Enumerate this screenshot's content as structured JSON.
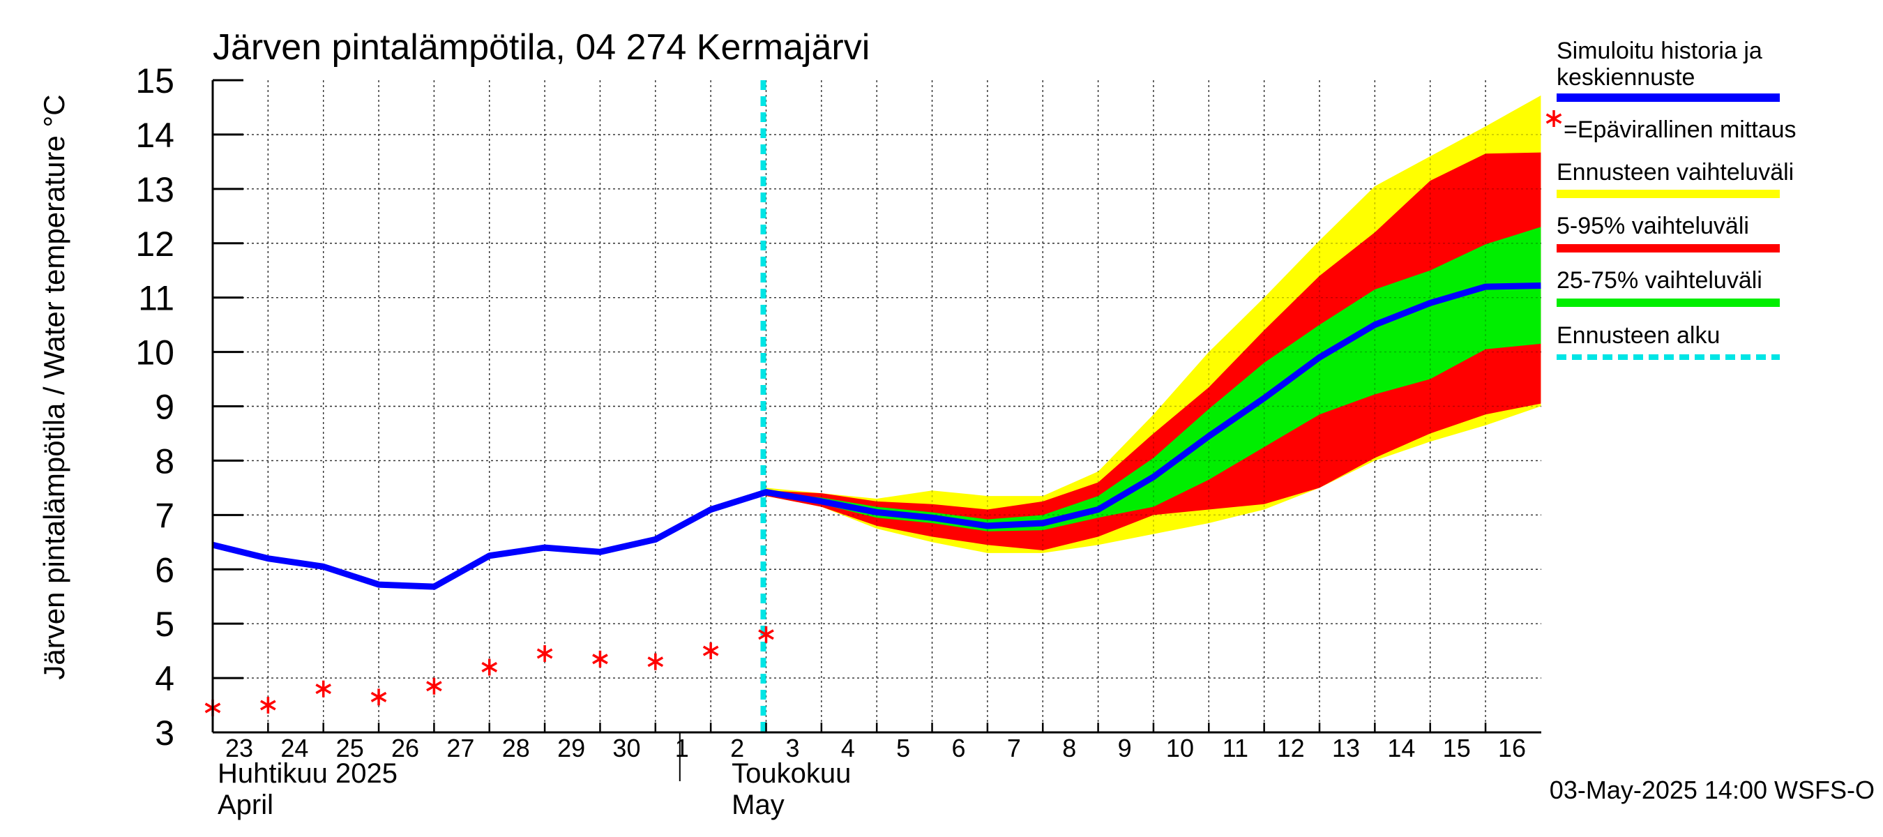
{
  "chart_data": {
    "type": "area",
    "title": "Järven pintalämpötila, 04 274 Kermajärvi",
    "ylabel": "Järven pintalämpötila / Water temperature °C",
    "ylim": [
      3,
      15
    ],
    "yticks": [
      "3",
      "4",
      "5",
      "6",
      "7",
      "8",
      "9",
      "10",
      "11",
      "12",
      "13",
      "14",
      "15"
    ],
    "x_range_days": [
      -0.1,
      24.0
    ],
    "day_labels": [
      "23",
      "24",
      "25",
      "26",
      "27",
      "28",
      "29",
      "30",
      "1",
      "2",
      "3",
      "4",
      "5",
      "6",
      "7",
      "8",
      "9",
      "10",
      "11",
      "12",
      "13",
      "14",
      "15",
      "16"
    ],
    "month_labels": [
      {
        "line1": "Huhtikuu  2025",
        "line2": "April",
        "day_index": 0
      },
      {
        "line1": "Toukokuu",
        "line2": "May",
        "day_index": 9
      }
    ],
    "month_boundary_day_index": 8,
    "forecast_start_day_index": 10,
    "grid": true,
    "legend_position": "right",
    "series": [
      {
        "name": "Simuloitu historia ja keskiennuste",
        "kind": "line",
        "color": "#0000ff",
        "x": [
          0,
          1,
          2,
          3,
          4,
          5,
          6,
          7,
          8,
          9,
          10,
          11,
          12,
          13,
          14,
          15,
          16,
          17,
          18,
          19,
          20,
          21,
          22,
          23,
          24
        ],
        "y": [
          6.45,
          6.2,
          6.05,
          5.72,
          5.68,
          6.25,
          6.4,
          6.32,
          6.55,
          7.1,
          7.42,
          7.25,
          7.05,
          6.95,
          6.8,
          6.85,
          7.1,
          7.7,
          8.45,
          9.15,
          9.9,
          10.5,
          10.9,
          11.2,
          11.22
        ]
      },
      {
        "name": "=Epävirallinen mittaus",
        "kind": "markers",
        "color": "#ff0000",
        "x": [
          0,
          1,
          2,
          3,
          4,
          5,
          6,
          7,
          8,
          9,
          10
        ],
        "y": [
          3.45,
          3.5,
          3.8,
          3.65,
          3.85,
          4.2,
          4.45,
          4.35,
          4.3,
          4.5,
          4.8
        ]
      }
    ],
    "bands": [
      {
        "name": "Ennusteen vaihteluväli",
        "color": "#ffff00",
        "x": [
          10,
          11,
          12,
          13,
          14,
          15,
          16,
          17,
          18,
          19,
          20,
          21,
          22,
          23,
          24
        ],
        "upper": [
          7.5,
          7.4,
          7.3,
          7.45,
          7.35,
          7.35,
          7.8,
          8.85,
          10.0,
          11.0,
          12.05,
          13.05,
          13.6,
          14.15,
          14.72
        ],
        "lower": [
          7.35,
          7.15,
          6.75,
          6.5,
          6.3,
          6.3,
          6.45,
          6.65,
          6.85,
          7.1,
          7.5,
          8.0,
          8.35,
          8.65,
          9.0
        ]
      },
      {
        "name": "5-95% vaihteluväli",
        "color": "#ff0000",
        "x": [
          10,
          11,
          12,
          13,
          14,
          15,
          16,
          17,
          18,
          19,
          20,
          21,
          22,
          23,
          24
        ],
        "upper": [
          7.45,
          7.4,
          7.25,
          7.2,
          7.1,
          7.25,
          7.6,
          8.5,
          9.35,
          10.4,
          11.4,
          12.2,
          13.15,
          13.65,
          13.67
        ],
        "lower": [
          7.35,
          7.15,
          6.8,
          6.6,
          6.45,
          6.35,
          6.6,
          7.0,
          7.1,
          7.2,
          7.5,
          8.05,
          8.5,
          8.85,
          9.05
        ]
      },
      {
        "name": "25-75% vaihteluväli",
        "color": "#00ee00",
        "x": [
          10,
          11,
          12,
          13,
          14,
          15,
          16,
          17,
          18,
          19,
          20,
          21,
          22,
          23,
          24
        ],
        "upper": [
          7.42,
          7.32,
          7.15,
          7.05,
          6.92,
          7.0,
          7.35,
          8.05,
          8.95,
          9.8,
          10.5,
          11.15,
          11.5,
          11.98,
          12.3
        ],
        "lower": [
          7.38,
          7.2,
          6.95,
          6.85,
          6.7,
          6.72,
          6.95,
          7.15,
          7.65,
          8.25,
          8.85,
          9.22,
          9.5,
          10.05,
          10.15
        ]
      }
    ],
    "legend": [
      {
        "label": "Simuloitu historia ja\nkeskiennuste",
        "style": "line",
        "color": "#0000ff"
      },
      {
        "label": "=Epävirallinen mittaus",
        "style": "marker",
        "color": "#ff0000"
      },
      {
        "label": "Ennusteen vaihteluväli",
        "style": "line",
        "color": "#ffff00"
      },
      {
        "label": "5-95% vaihteluväli",
        "style": "line",
        "color": "#ff0000"
      },
      {
        "label": "25-75% vaihteluväli",
        "style": "line",
        "color": "#00ee00"
      },
      {
        "label": "Ennusteen alku",
        "style": "dashed",
        "color": "#00e5e5"
      }
    ],
    "forecast_line_color": "#00e5e5",
    "footer": "03-May-2025 14:00 WSFS-O"
  }
}
